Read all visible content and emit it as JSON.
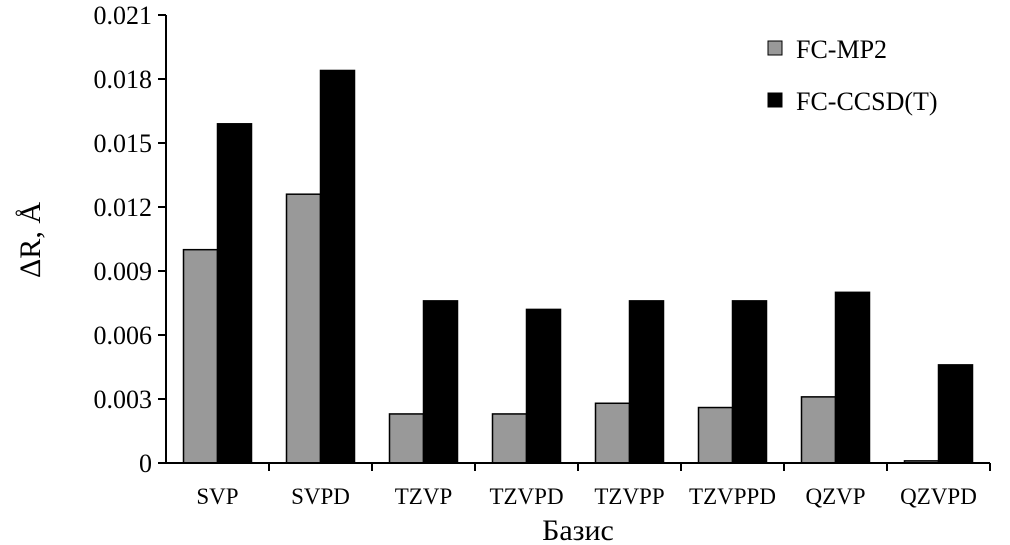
{
  "chart_data": {
    "type": "bar",
    "categories": [
      "SVP",
      "SVPD",
      "TZVP",
      "TZVPD",
      "TZVPP",
      "TZVPPD",
      "QZVP",
      "QZVPD"
    ],
    "series": [
      {
        "name": "FC-MP2",
        "values": [
          0.01,
          0.0126,
          0.0023,
          0.0023,
          0.0028,
          0.0026,
          0.0031,
          0.0001
        ],
        "color": "#999999"
      },
      {
        "name": "FC-CCSD(T)",
        "values": [
          0.0159,
          0.0184,
          0.0076,
          0.0072,
          0.0076,
          0.0076,
          0.008,
          0.0046
        ],
        "color": "#000000"
      }
    ],
    "yticks": [
      "0",
      "0.003",
      "0.006",
      "0.009",
      "0.012",
      "0.015",
      "0.018",
      "0.021"
    ],
    "ylim": [
      0,
      0.021
    ],
    "ylabel": "ΔR, Å",
    "xlabel": "Базис",
    "legend_position": "top-right",
    "grid": false
  }
}
